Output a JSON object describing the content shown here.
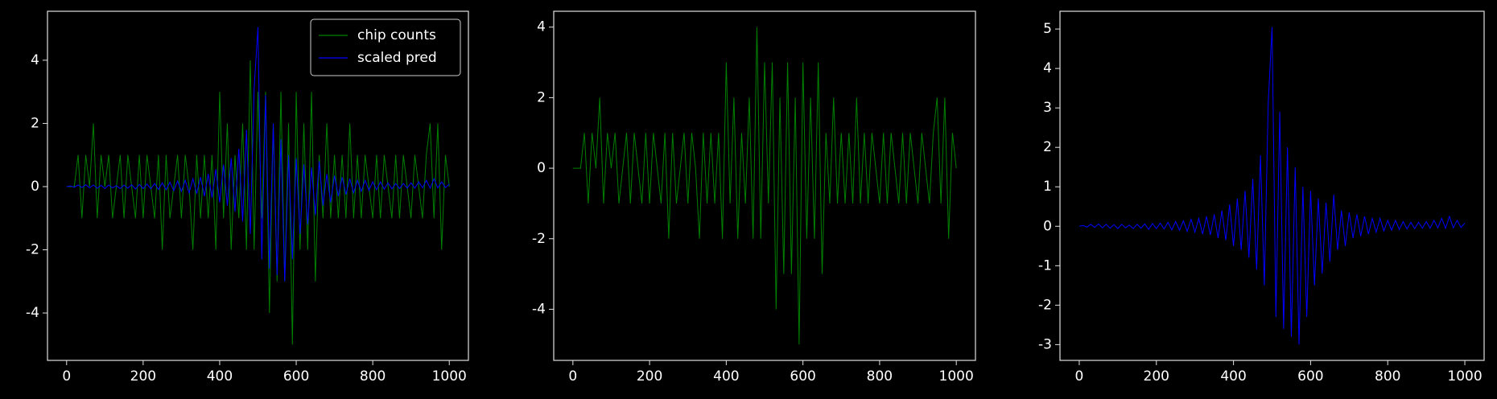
{
  "chart_data": [
    {
      "type": "line",
      "legend": "upper right",
      "xlim": [
        -50,
        1050
      ],
      "xticks": [
        0,
        200,
        400,
        600,
        800,
        1000
      ],
      "ylim": [
        -5.5,
        5.55
      ],
      "yticks": [
        -4,
        -2,
        0,
        2,
        4
      ],
      "x": [
        0,
        10,
        20,
        30,
        40,
        50,
        60,
        70,
        80,
        90,
        100,
        110,
        120,
        130,
        140,
        150,
        160,
        170,
        180,
        190,
        200,
        210,
        220,
        230,
        240,
        250,
        260,
        270,
        280,
        290,
        300,
        310,
        320,
        330,
        340,
        350,
        360,
        370,
        380,
        390,
        400,
        410,
        420,
        430,
        440,
        450,
        460,
        470,
        480,
        490,
        500,
        510,
        520,
        530,
        540,
        550,
        560,
        570,
        580,
        590,
        600,
        610,
        620,
        630,
        640,
        650,
        660,
        670,
        680,
        690,
        700,
        710,
        720,
        730,
        740,
        750,
        760,
        770,
        780,
        790,
        800,
        810,
        820,
        830,
        840,
        850,
        860,
        870,
        880,
        890,
        900,
        910,
        920,
        930,
        940,
        950,
        960,
        970,
        980,
        990,
        1000
      ],
      "series": [
        {
          "name": "chip counts",
          "color": "#008000",
          "values": [
            0,
            0,
            0,
            1,
            -1,
            1,
            0,
            2,
            -1,
            1,
            0,
            1,
            -1,
            0,
            1,
            -1,
            1,
            0,
            -1,
            1,
            -1,
            1,
            0,
            -1,
            1,
            -2,
            1,
            -1,
            0,
            1,
            -1,
            1,
            0,
            -2,
            1,
            -1,
            1,
            -1,
            1,
            -2,
            3,
            -1,
            2,
            -2,
            1,
            -1,
            2,
            -2,
            4,
            -2,
            3,
            -1,
            3,
            -4,
            2,
            -3,
            3,
            -3,
            2,
            -5,
            3,
            -2,
            2,
            -2,
            3,
            -3,
            1,
            -1,
            2,
            -1,
            1,
            -1,
            1,
            -1,
            2,
            -1,
            1,
            -1,
            1,
            0,
            -1,
            1,
            -1,
            1,
            0,
            -1,
            1,
            -1,
            1,
            0,
            -1,
            1,
            0,
            -1,
            1,
            2,
            -1,
            2,
            -2,
            1,
            0
          ]
        },
        {
          "name": "scaled pred",
          "color": "#0000ff",
          "values": [
            0,
            0.02,
            -0.02,
            0.05,
            -0.03,
            0.06,
            -0.04,
            0.05,
            -0.05,
            0.04,
            -0.06,
            0.05,
            -0.04,
            0.03,
            -0.06,
            0.05,
            -0.05,
            0.06,
            -0.08,
            0.07,
            -0.06,
            0.08,
            -0.07,
            0.1,
            -0.09,
            0.12,
            -0.1,
            0.14,
            -0.13,
            0.18,
            -0.15,
            0.2,
            -0.2,
            0.25,
            -0.22,
            0.3,
            -0.3,
            0.4,
            -0.35,
            0.55,
            -0.5,
            0.7,
            -0.6,
            0.9,
            -0.8,
            1.2,
            -1.1,
            1.8,
            -1.5,
            3.1,
            5.05,
            -2.3,
            2.9,
            -2.6,
            2.0,
            -2.8,
            1.5,
            -3.0,
            1.0,
            -2.3,
            0.9,
            -1.5,
            0.7,
            -1.2,
            0.6,
            -0.9,
            0.8,
            -0.6,
            0.4,
            -0.5,
            0.35,
            -0.3,
            0.3,
            -0.25,
            0.25,
            -0.2,
            0.2,
            -0.15,
            0.2,
            -0.12,
            0.15,
            -0.1,
            0.15,
            -0.08,
            0.12,
            -0.07,
            0.1,
            -0.06,
            0.1,
            -0.05,
            0.12,
            -0.05,
            0.15,
            -0.04,
            0.2,
            -0.05,
            0.25,
            -0.04,
            0.15,
            -0.03,
            0.08
          ]
        }
      ]
    },
    {
      "type": "line",
      "xlim": [
        -50,
        1050
      ],
      "xticks": [
        0,
        200,
        400,
        600,
        800,
        1000
      ],
      "ylim": [
        -5.45,
        4.45
      ],
      "yticks": [
        -4,
        -2,
        0,
        2,
        4
      ],
      "x": [
        0,
        10,
        20,
        30,
        40,
        50,
        60,
        70,
        80,
        90,
        100,
        110,
        120,
        130,
        140,
        150,
        160,
        170,
        180,
        190,
        200,
        210,
        220,
        230,
        240,
        250,
        260,
        270,
        280,
        290,
        300,
        310,
        320,
        330,
        340,
        350,
        360,
        370,
        380,
        390,
        400,
        410,
        420,
        430,
        440,
        450,
        460,
        470,
        480,
        490,
        500,
        510,
        520,
        530,
        540,
        550,
        560,
        570,
        580,
        590,
        600,
        610,
        620,
        630,
        640,
        650,
        660,
        670,
        680,
        690,
        700,
        710,
        720,
        730,
        740,
        750,
        760,
        770,
        780,
        790,
        800,
        810,
        820,
        830,
        840,
        850,
        860,
        870,
        880,
        890,
        900,
        910,
        920,
        930,
        940,
        950,
        960,
        970,
        980,
        990,
        1000
      ],
      "series": [
        {
          "color": "#008000",
          "values": [
            0,
            0,
            0,
            1,
            -1,
            1,
            0,
            2,
            -1,
            1,
            0,
            1,
            -1,
            0,
            1,
            -1,
            1,
            0,
            -1,
            1,
            -1,
            1,
            0,
            -1,
            1,
            -2,
            1,
            -1,
            0,
            1,
            -1,
            1,
            0,
            -2,
            1,
            -1,
            1,
            -1,
            1,
            -2,
            3,
            -1,
            2,
            -2,
            1,
            -1,
            2,
            -2,
            4,
            -2,
            3,
            -1,
            3,
            -4,
            2,
            -3,
            3,
            -3,
            2,
            -5,
            3,
            -2,
            2,
            -2,
            3,
            -3,
            1,
            -1,
            2,
            -1,
            1,
            -1,
            1,
            -1,
            2,
            -1,
            1,
            -1,
            1,
            0,
            -1,
            1,
            -1,
            1,
            0,
            -1,
            1,
            -1,
            1,
            0,
            -1,
            1,
            0,
            -1,
            1,
            2,
            -1,
            2,
            -2,
            1,
            0
          ]
        }
      ]
    },
    {
      "type": "line",
      "xlim": [
        -50,
        1050
      ],
      "xticks": [
        0,
        200,
        400,
        600,
        800,
        1000
      ],
      "ylim": [
        -3.4,
        5.45
      ],
      "yticks": [
        -3,
        -2,
        -1,
        0,
        1,
        2,
        3,
        4,
        5
      ],
      "x": [
        0,
        10,
        20,
        30,
        40,
        50,
        60,
        70,
        80,
        90,
        100,
        110,
        120,
        130,
        140,
        150,
        160,
        170,
        180,
        190,
        200,
        210,
        220,
        230,
        240,
        250,
        260,
        270,
        280,
        290,
        300,
        310,
        320,
        330,
        340,
        350,
        360,
        370,
        380,
        390,
        400,
        410,
        420,
        430,
        440,
        450,
        460,
        470,
        480,
        490,
        500,
        510,
        520,
        530,
        540,
        550,
        560,
        570,
        580,
        590,
        600,
        610,
        620,
        630,
        640,
        650,
        660,
        670,
        680,
        690,
        700,
        710,
        720,
        730,
        740,
        750,
        760,
        770,
        780,
        790,
        800,
        810,
        820,
        830,
        840,
        850,
        860,
        870,
        880,
        890,
        900,
        910,
        920,
        930,
        940,
        950,
        960,
        970,
        980,
        990,
        1000
      ],
      "series": [
        {
          "color": "#0000ff",
          "values": [
            0,
            0.02,
            -0.02,
            0.05,
            -0.03,
            0.06,
            -0.04,
            0.05,
            -0.05,
            0.04,
            -0.06,
            0.05,
            -0.04,
            0.03,
            -0.06,
            0.05,
            -0.05,
            0.06,
            -0.08,
            0.07,
            -0.06,
            0.08,
            -0.07,
            0.1,
            -0.09,
            0.12,
            -0.1,
            0.14,
            -0.13,
            0.18,
            -0.15,
            0.2,
            -0.2,
            0.25,
            -0.22,
            0.3,
            -0.3,
            0.4,
            -0.35,
            0.55,
            -0.5,
            0.7,
            -0.6,
            0.9,
            -0.8,
            1.2,
            -1.1,
            1.8,
            -1.5,
            3.1,
            5.05,
            -2.3,
            2.9,
            -2.6,
            2.0,
            -2.8,
            1.5,
            -3.0,
            1.0,
            -2.3,
            0.9,
            -1.5,
            0.7,
            -1.2,
            0.6,
            -0.9,
            0.8,
            -0.6,
            0.4,
            -0.5,
            0.35,
            -0.3,
            0.3,
            -0.25,
            0.25,
            -0.2,
            0.2,
            -0.15,
            0.2,
            -0.12,
            0.15,
            -0.1,
            0.15,
            -0.08,
            0.12,
            -0.07,
            0.1,
            -0.06,
            0.1,
            -0.05,
            0.12,
            -0.05,
            0.15,
            -0.04,
            0.2,
            -0.05,
            0.25,
            -0.04,
            0.15,
            -0.03,
            0.08
          ]
        }
      ]
    }
  ]
}
